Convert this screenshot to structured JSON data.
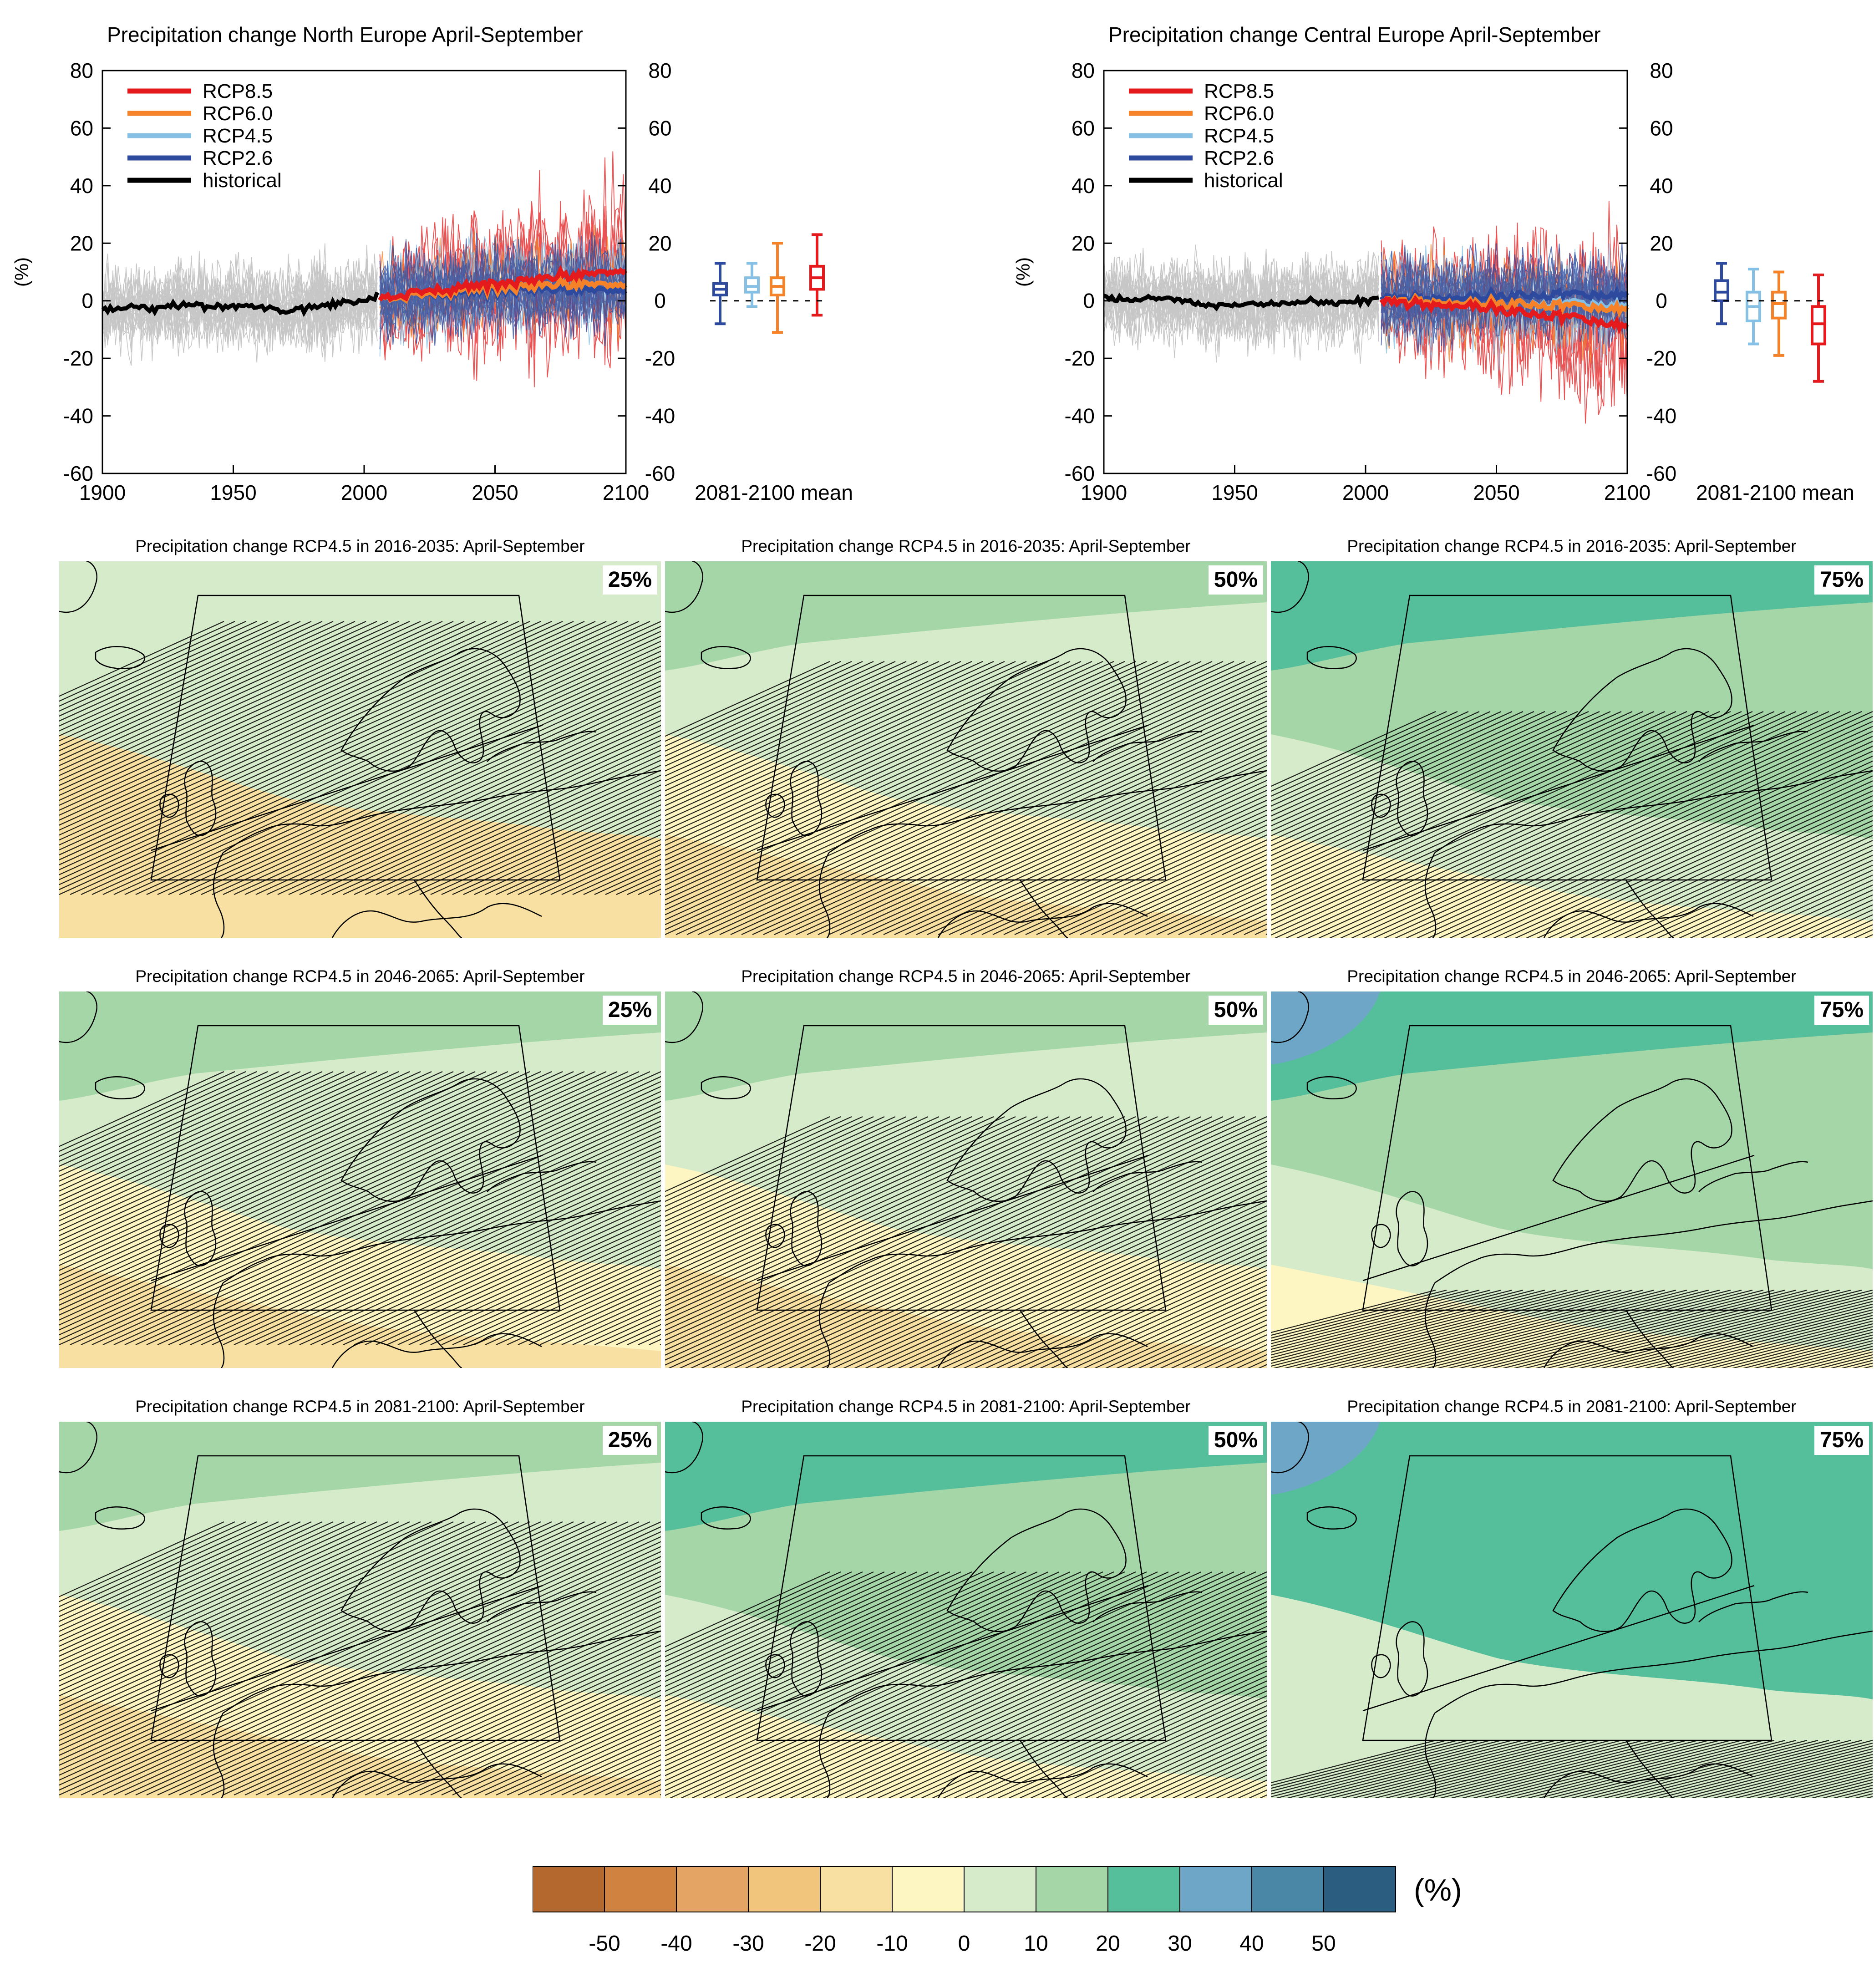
{
  "colors": {
    "rcp85": "#e41a1c",
    "rcp60": "#f58229",
    "rcp45": "#86c1e5",
    "rcp26": "#2e4a9e",
    "historical": "#000000",
    "ensemble_grey": "#9a9a9a"
  },
  "chart_data": [
    {
      "type": "line",
      "id": "north",
      "title": "Precipitation change North Europe April-September",
      "ylabel": "(%)",
      "xlim": [
        1900,
        2100
      ],
      "ylim": [
        -60,
        80
      ],
      "x_ticks": [
        "1900",
        "1950",
        "2000",
        "2050",
        "2100"
      ],
      "y_ticks": [
        "-60",
        "-40",
        "-20",
        "0",
        "20",
        "40",
        "60",
        "80"
      ],
      "legend_position": "top-left",
      "series": [
        {
          "name": "RCP8.5",
          "key": "rcp85",
          "x": [
            2006,
            2020,
            2040,
            2060,
            2080,
            2100
          ],
          "values": [
            1,
            3,
            5,
            7,
            9,
            11
          ]
        },
        {
          "name": "RCP6.0",
          "key": "rcp60",
          "x": [
            2006,
            2020,
            2040,
            2060,
            2080,
            2100
          ],
          "values": [
            1,
            2,
            4,
            5,
            6,
            6
          ]
        },
        {
          "name": "RCP4.5",
          "key": "rcp45",
          "x": [
            2006,
            2020,
            2040,
            2060,
            2080,
            2100
          ],
          "values": [
            1,
            2,
            4,
            5,
            6,
            6
          ]
        },
        {
          "name": "RCP2.6",
          "key": "rcp26",
          "x": [
            2006,
            2020,
            2040,
            2060,
            2080,
            2100
          ],
          "values": [
            1,
            2,
            3,
            4,
            4,
            4
          ]
        },
        {
          "name": "historical",
          "key": "historical",
          "x": [
            1900,
            1910,
            1920,
            1930,
            1940,
            1950,
            1960,
            1970,
            1980,
            1990,
            2000,
            2005
          ],
          "values": [
            -3,
            -2,
            -3,
            -1,
            -2,
            -2,
            -2,
            -4,
            -2,
            -1,
            0,
            2
          ]
        }
      ],
      "boxplot_label": "2081-2100 mean",
      "boxplots": [
        {
          "key": "rcp26",
          "min": -8,
          "q1": 2,
          "median": 4,
          "q3": 6,
          "max": 13
        },
        {
          "key": "rcp45",
          "min": -2,
          "q1": 3,
          "median": 5,
          "q3": 8,
          "max": 13
        },
        {
          "key": "rcp60",
          "min": -11,
          "q1": 2,
          "median": 5,
          "q3": 8,
          "max": 20
        },
        {
          "key": "rcp85",
          "min": -5,
          "q1": 4,
          "median": 8,
          "q3": 12,
          "max": 23
        }
      ]
    },
    {
      "type": "line",
      "id": "central",
      "title": "Precipitation change Central Europe April-September",
      "ylabel": "(%)",
      "xlim": [
        1900,
        2100
      ],
      "ylim": [
        -60,
        80
      ],
      "x_ticks": [
        "1900",
        "1950",
        "2000",
        "2050",
        "2100"
      ],
      "y_ticks": [
        "-60",
        "-40",
        "-20",
        "0",
        "20",
        "40",
        "60",
        "80"
      ],
      "legend_position": "top-left",
      "series": [
        {
          "name": "RCP8.5",
          "key": "rcp85",
          "x": [
            2006,
            2020,
            2040,
            2060,
            2080,
            2100
          ],
          "values": [
            0,
            -1,
            -2,
            -4,
            -6,
            -9
          ]
        },
        {
          "name": "RCP6.0",
          "key": "rcp60",
          "x": [
            2006,
            2020,
            2040,
            2060,
            2080,
            2100
          ],
          "values": [
            0,
            0,
            -1,
            -1,
            -2,
            -3
          ]
        },
        {
          "name": "RCP4.5",
          "key": "rcp45",
          "x": [
            2006,
            2020,
            2040,
            2060,
            2080,
            2100
          ],
          "values": [
            0,
            0,
            -1,
            -1,
            -1,
            -2
          ]
        },
        {
          "name": "RCP2.6",
          "key": "rcp26",
          "x": [
            2006,
            2020,
            2040,
            2060,
            2080,
            2100
          ],
          "values": [
            1,
            1,
            1,
            2,
            2,
            2
          ]
        },
        {
          "name": "historical",
          "key": "historical",
          "x": [
            1900,
            1910,
            1920,
            1930,
            1940,
            1950,
            1960,
            1970,
            1980,
            1990,
            2000,
            2005
          ],
          "values": [
            1,
            0,
            1,
            0,
            -1,
            -1,
            -1,
            -1,
            0,
            -1,
            0,
            1
          ]
        }
      ],
      "boxplot_label": "2081-2100 mean",
      "boxplots": [
        {
          "key": "rcp26",
          "min": -8,
          "q1": 0,
          "median": 3,
          "q3": 7,
          "max": 13
        },
        {
          "key": "rcp45",
          "min": -15,
          "q1": -7,
          "median": -2,
          "q3": 3,
          "max": 11
        },
        {
          "key": "rcp60",
          "min": -19,
          "q1": -6,
          "median": -1,
          "q3": 3,
          "max": 10
        },
        {
          "key": "rcp85",
          "min": -28,
          "q1": -15,
          "median": -8,
          "q3": -2,
          "max": 9
        }
      ]
    }
  ],
  "maps": {
    "title_template": "Precipitation change RCP4.5 in {period}: April-September",
    "periods": [
      "2016-2035",
      "2046-2065",
      "2081-2100"
    ],
    "percentiles": [
      "25%",
      "50%",
      "75%"
    ],
    "rows": [
      {
        "title": "Precipitation change RCP4.5 in 2016-2035: April-September",
        "panels": [
          {
            "percentile": "25%",
            "wetness": -0.4
          },
          {
            "percentile": "50%",
            "wetness": 0.0
          },
          {
            "percentile": "75%",
            "wetness": 0.5
          }
        ]
      },
      {
        "title": "Precipitation change RCP4.5 in 2046-2065: April-September",
        "panels": [
          {
            "percentile": "25%",
            "wetness": -0.2
          },
          {
            "percentile": "50%",
            "wetness": 0.25
          },
          {
            "percentile": "75%",
            "wetness": 0.8
          }
        ]
      },
      {
        "title": "Precipitation change RCP4.5 in 2081-2100: April-September",
        "panels": [
          {
            "percentile": "25%",
            "wetness": 0.0
          },
          {
            "percentile": "50%",
            "wetness": 0.5
          },
          {
            "percentile": "75%",
            "wetness": 1.0
          }
        ]
      }
    ]
  },
  "colorbar": {
    "unit": "(%)",
    "ticks": [
      "-50",
      "-40",
      "-30",
      "-20",
      "-10",
      "0",
      "10",
      "20",
      "30",
      "40",
      "50"
    ],
    "colors": [
      "#b5682d",
      "#d08340",
      "#e3a464",
      "#f2c57c",
      "#f7e0a2",
      "#fdf6c3",
      "#d5ebc9",
      "#a5d6a7",
      "#55bf9b",
      "#6ea6c8",
      "#4a86a6",
      "#2a5d80"
    ]
  }
}
